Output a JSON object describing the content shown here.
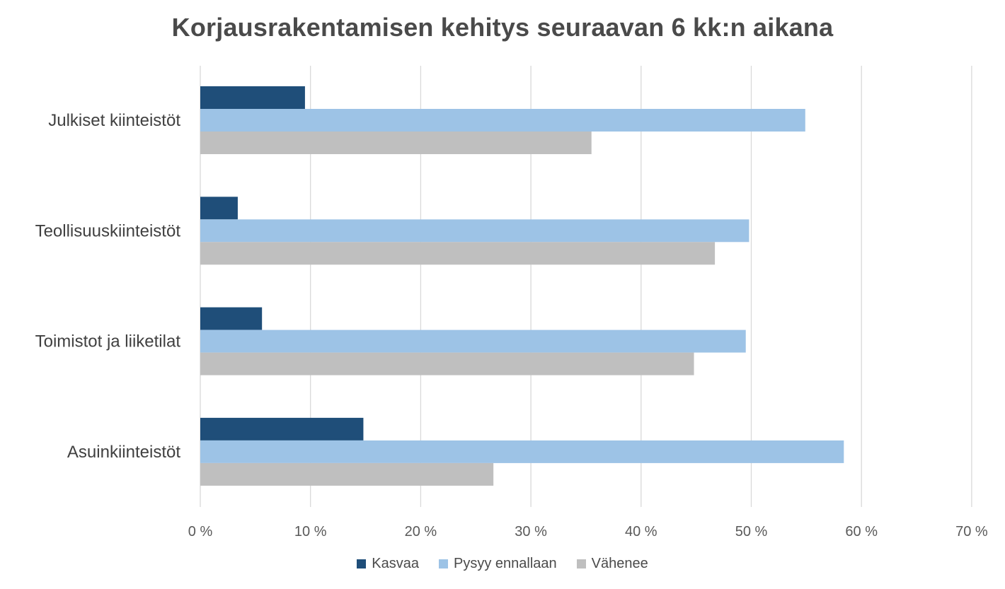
{
  "chart_data": {
    "type": "bar",
    "orientation": "horizontal",
    "title": "Korjausrakentamisen kehitys seuraavan 6 kk:n aikana",
    "categories": [
      "Julkiset kiinteistöt",
      "Teollisuuskiinteistöt",
      "Toimistot ja liiketilat",
      "Asuinkiinteistöt"
    ],
    "series": [
      {
        "name": "Kasvaa",
        "color": "#1f4e79",
        "values": [
          9.5,
          3.4,
          5.6,
          14.8
        ]
      },
      {
        "name": "Pysyy ennallaan",
        "color": "#9dc3e6",
        "values": [
          54.9,
          49.8,
          49.5,
          58.4
        ]
      },
      {
        "name": "Vähenee",
        "color": "#bfbfbf",
        "values": [
          35.5,
          46.7,
          44.8,
          26.6
        ]
      }
    ],
    "xlim": [
      0,
      70
    ],
    "xticks": [
      "0 %",
      "10 %",
      "20 %",
      "30 %",
      "40 %",
      "50 %",
      "60 %",
      "70 %"
    ],
    "grid": true,
    "legend_position": "bottom"
  }
}
